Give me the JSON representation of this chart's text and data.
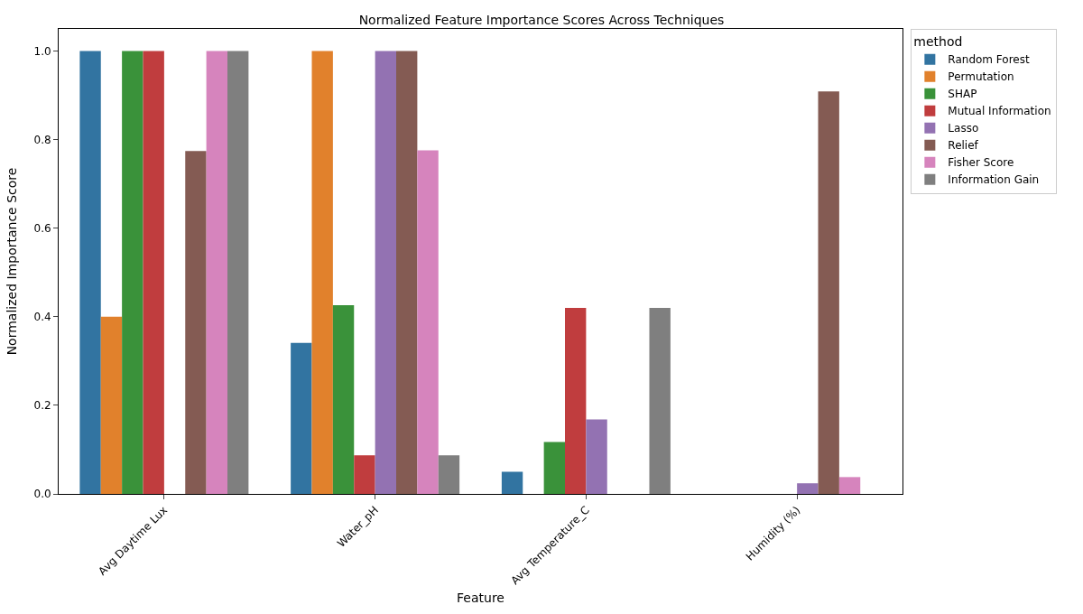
{
  "chart_data": {
    "type": "bar",
    "title": "Normalized Feature Importance Scores Across Techniques",
    "xlabel": "Feature",
    "ylabel": "Normalized Importance Score",
    "legend_title": "method",
    "categories": [
      "Avg Daytime Lux",
      "Water_pH",
      "Avg Temperature_C",
      "Humidity (%)"
    ],
    "series": [
      {
        "name": "Random Forest",
        "color": "#3274a1",
        "values": [
          1.0,
          0.341,
          0.05,
          0
        ]
      },
      {
        "name": "Permutation",
        "color": "#e1812c",
        "values": [
          0.4,
          1.0,
          0,
          0
        ]
      },
      {
        "name": "SHAP",
        "color": "#3a923a",
        "values": [
          1.0,
          0.426,
          0.117,
          0
        ]
      },
      {
        "name": "Mutual Information",
        "color": "#c03d3e",
        "values": [
          1.0,
          0.087,
          0.42,
          0
        ]
      },
      {
        "name": "Lasso",
        "color": "#9372b2",
        "values": [
          0,
          1.0,
          0.168,
          0.024
        ]
      },
      {
        "name": "Relief",
        "color": "#845b53",
        "values": [
          0.774,
          1.0,
          0,
          0.909
        ]
      },
      {
        "name": "Fisher Score",
        "color": "#d684bd",
        "values": [
          1.0,
          0.776,
          0,
          0.038
        ]
      },
      {
        "name": "Information Gain",
        "color": "#7f7f7f",
        "values": [
          1.0,
          0.087,
          0.42,
          0
        ]
      }
    ],
    "ylim": [
      0,
      1.05
    ],
    "yticks": [
      {
        "value": 0,
        "label": "0.0"
      },
      {
        "value": 0.2,
        "label": "0.2"
      },
      {
        "value": 0.4,
        "label": "0.4"
      },
      {
        "value": 0.6,
        "label": "0.6"
      },
      {
        "value": 0.8,
        "label": "0.8"
      },
      {
        "value": 1.0,
        "label": "1.0"
      }
    ],
    "legend": "top right"
  }
}
